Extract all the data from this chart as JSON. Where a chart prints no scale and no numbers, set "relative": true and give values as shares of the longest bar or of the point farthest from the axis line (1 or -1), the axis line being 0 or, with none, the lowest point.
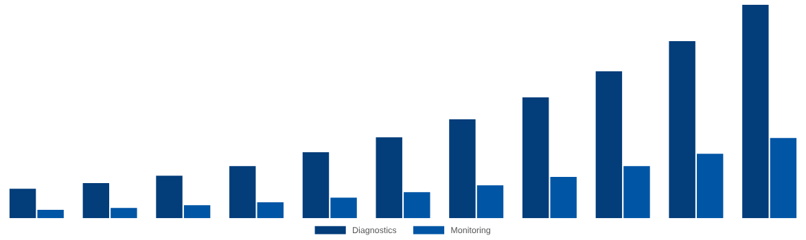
{
  "chart_data": {
    "type": "bar",
    "relative": true,
    "legend": "bottom",
    "grid": false,
    "categories": [
      null,
      null,
      null,
      null,
      null,
      null,
      null,
      null,
      null,
      null,
      null
    ],
    "series": [
      {
        "name": "Diagnostics",
        "color": "#033d7a",
        "values": [
          0.138,
          0.164,
          0.199,
          0.244,
          0.309,
          0.379,
          0.463,
          0.566,
          0.688,
          0.83,
          1
        ]
      },
      {
        "name": "Monitoring",
        "color": "#0055a5",
        "values": [
          0.039,
          0.048,
          0.061,
          0.074,
          0.096,
          0.122,
          0.154,
          0.193,
          0.244,
          0.302,
          0.376
        ]
      }
    ]
  }
}
